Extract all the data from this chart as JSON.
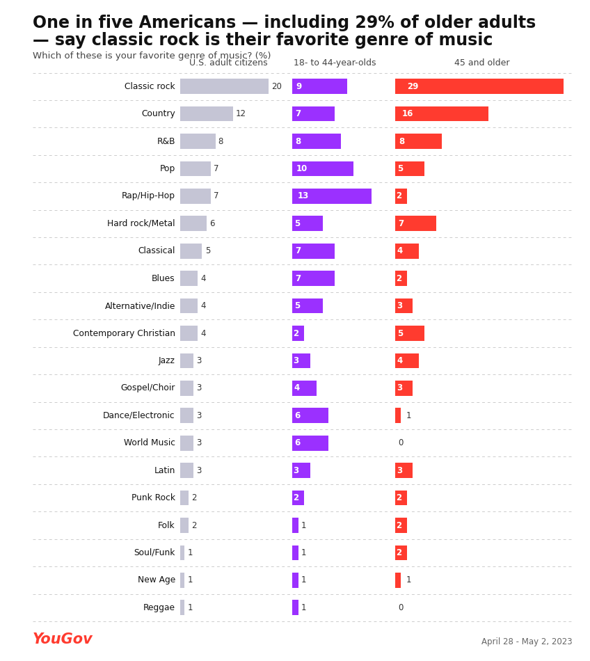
{
  "title_line1": "One in five Americans — including 29% of older adults",
  "title_line2": "— say classic rock is their favorite genre of music",
  "subtitle": "Which of these is your favorite genre of music? (%)",
  "col_headers": [
    "U.S. adult citizens",
    "18- to 44-year-olds",
    "45 and older"
  ],
  "footer_left": "YouGov",
  "footer_right": "April 28 - May 2, 2023",
  "background_color": "#ffffff",
  "categories": [
    "Classic rock",
    "Country",
    "R&B",
    "Pop",
    "Rap/Hip-Hop",
    "Hard rock/Metal",
    "Classical",
    "Blues",
    "Alternative/Indie",
    "Contemporary Christian",
    "Jazz",
    "Gospel/Choir",
    "Dance/Electronic",
    "World Music",
    "Latin",
    "Punk Rock",
    "Folk",
    "Soul/Funk",
    "New Age",
    "Reggae"
  ],
  "us_adults": [
    20,
    12,
    8,
    7,
    7,
    6,
    5,
    4,
    4,
    4,
    3,
    3,
    3,
    3,
    3,
    2,
    2,
    1,
    1,
    1
  ],
  "young": [
    9,
    7,
    8,
    10,
    13,
    5,
    7,
    7,
    5,
    2,
    3,
    4,
    6,
    6,
    3,
    2,
    1,
    1,
    1,
    1
  ],
  "older": [
    29,
    16,
    8,
    5,
    2,
    7,
    4,
    2,
    3,
    5,
    4,
    3,
    1,
    0,
    3,
    2,
    2,
    2,
    1,
    0
  ],
  "color_us": "#c5c5d5",
  "color_young": "#9b30ff",
  "color_older": "#ff3b2f",
  "color_yougov": "#ff3b2f",
  "max_us": 22,
  "max_young": 14,
  "max_older": 30
}
